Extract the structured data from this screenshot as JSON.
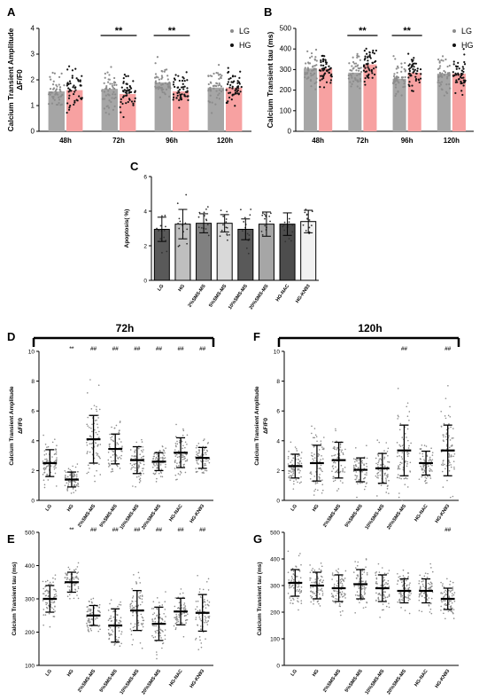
{
  "chart_data": [
    {
      "panel": "A",
      "type": "bar",
      "ylabel": "Calcium Transient Amplitude ΔF/F0",
      "ylim": [
        0,
        4
      ],
      "yticks": [
        "0",
        "1",
        "2",
        "3",
        "4"
      ],
      "categories": [
        "48h",
        "72h",
        "96h",
        "120h"
      ],
      "series": [
        {
          "name": "LG",
          "color": "#a6a6a6",
          "values": [
            1.55,
            1.65,
            1.9,
            1.7
          ]
        },
        {
          "name": "HG",
          "color": "#f7a1a1",
          "values": [
            1.6,
            1.45,
            1.55,
            1.7
          ]
        }
      ],
      "significance": [
        "",
        "**",
        "**",
        ""
      ],
      "legend": "top-right"
    },
    {
      "panel": "B",
      "type": "bar",
      "ylabel": "Calcium Transient tau (ms)",
      "ylim": [
        0,
        500
      ],
      "yticks": [
        "0",
        "100",
        "200",
        "300",
        "400",
        "500"
      ],
      "categories": [
        "48h",
        "72h",
        "96h",
        "120h"
      ],
      "series": [
        {
          "name": "LG",
          "color": "#a6a6a6",
          "values": [
            305,
            285,
            255,
            280
          ]
        },
        {
          "name": "HG",
          "color": "#f7a1a1",
          "values": [
            305,
            325,
            285,
            280
          ]
        }
      ],
      "significance": [
        "",
        "**",
        "**",
        ""
      ],
      "legend": "top-right"
    },
    {
      "panel": "C",
      "type": "bar",
      "ylabel": "Apoptosis( %)",
      "ylim": [
        0,
        6
      ],
      "yticks": [
        "0",
        "2",
        "4",
        "6"
      ],
      "categories": [
        "LG",
        "HG",
        "2%SMS-MS",
        "5%SMS-MS",
        "10%SMS-MS",
        "20%SMS-MS",
        "HG-NAC",
        "HG-KN93"
      ],
      "values": [
        2.95,
        3.25,
        3.3,
        3.3,
        2.95,
        3.25,
        3.25,
        3.4
      ],
      "errors": [
        0.7,
        0.85,
        0.55,
        0.5,
        0.6,
        0.7,
        0.65,
        0.65
      ],
      "colors": [
        "#595959",
        "#bfbfbf",
        "#808080",
        "#d9d9d9",
        "#595959",
        "#a6a6a6",
        "#4d4d4d",
        "#f2f2f2"
      ]
    },
    {
      "panel": "D",
      "type": "scatter",
      "group": "72h",
      "ylabel": "Calcium Transient Amplitude ΔF/F0",
      "ylim": [
        0,
        10
      ],
      "yticks": [
        "0",
        "2",
        "4",
        "6",
        "8",
        "10"
      ],
      "categories": [
        "LG",
        "HG",
        "2%SMS-MS",
        "5%SMS-MS",
        "10%SMS-MS",
        "20%SMS-MS",
        "HG-NAC",
        "HG-KN93"
      ],
      "mean": [
        2.5,
        1.4,
        4.1,
        3.45,
        2.7,
        2.6,
        3.2,
        2.85
      ],
      "sd": [
        0.9,
        0.5,
        1.6,
        1.0,
        0.9,
        0.6,
        1.0,
        0.7
      ],
      "significance": [
        "",
        "**",
        "##",
        "##",
        "##",
        "##",
        "##",
        "##"
      ]
    },
    {
      "panel": "F",
      "type": "scatter",
      "group": "120h",
      "ylabel": "Calcium Transient Amplitude ΔF/F0",
      "ylim": [
        0,
        10
      ],
      "yticks": [
        "0",
        "2",
        "4",
        "6",
        "8",
        "10"
      ],
      "categories": [
        "LG",
        "HG",
        "2%SMS-MS",
        "5%SMS-MS",
        "10%SMS-MS",
        "20%SMS-MS",
        "HG-NAC",
        "HG-KN93"
      ],
      "mean": [
        2.3,
        2.5,
        2.7,
        2.05,
        2.15,
        3.35,
        2.5,
        3.35
      ],
      "sd": [
        0.8,
        1.2,
        1.2,
        0.8,
        1.0,
        1.7,
        0.8,
        1.7
      ],
      "significance": [
        "",
        "",
        "",
        "",
        "",
        "##",
        "",
        "##"
      ]
    },
    {
      "panel": "E",
      "type": "scatter",
      "ylabel": "Calcium Transient tau (ms)",
      "ylim": [
        100,
        500
      ],
      "yticks": [
        "100",
        "200",
        "300",
        "400",
        "500"
      ],
      "categories": [
        "LG",
        "HG",
        "2%SMS-MS",
        "5%SMS-MS",
        "10%SMS-MS",
        "20%SMS-MS",
        "HG-NAC",
        "HG-KN93"
      ],
      "mean": [
        300,
        350,
        250,
        220,
        265,
        225,
        262,
        258
      ],
      "sd": [
        40,
        30,
        30,
        50,
        60,
        50,
        40,
        55
      ],
      "significance": [
        "",
        "**",
        "##",
        "##",
        "##",
        "##",
        "##",
        "##"
      ]
    },
    {
      "panel": "G",
      "type": "scatter",
      "ylabel": "Calcium Transient tau (ms)",
      "ylim": [
        0,
        500
      ],
      "yticks": [
        "0",
        "100",
        "200",
        "300",
        "400",
        "500"
      ],
      "categories": [
        "LG",
        "HG",
        "2%SMS-MS",
        "5%SMS-MS",
        "10%SMS-MS",
        "20%SMS-MS",
        "HG-NAC",
        "HG-KN93"
      ],
      "mean": [
        310,
        300,
        290,
        305,
        290,
        280,
        280,
        250
      ],
      "sd": [
        50,
        50,
        50,
        55,
        50,
        45,
        45,
        40
      ],
      "significance": [
        "",
        "",
        "",
        "",
        "",
        "",
        "",
        "##"
      ]
    }
  ],
  "groups": {
    "left": "72h",
    "right": "120h"
  }
}
